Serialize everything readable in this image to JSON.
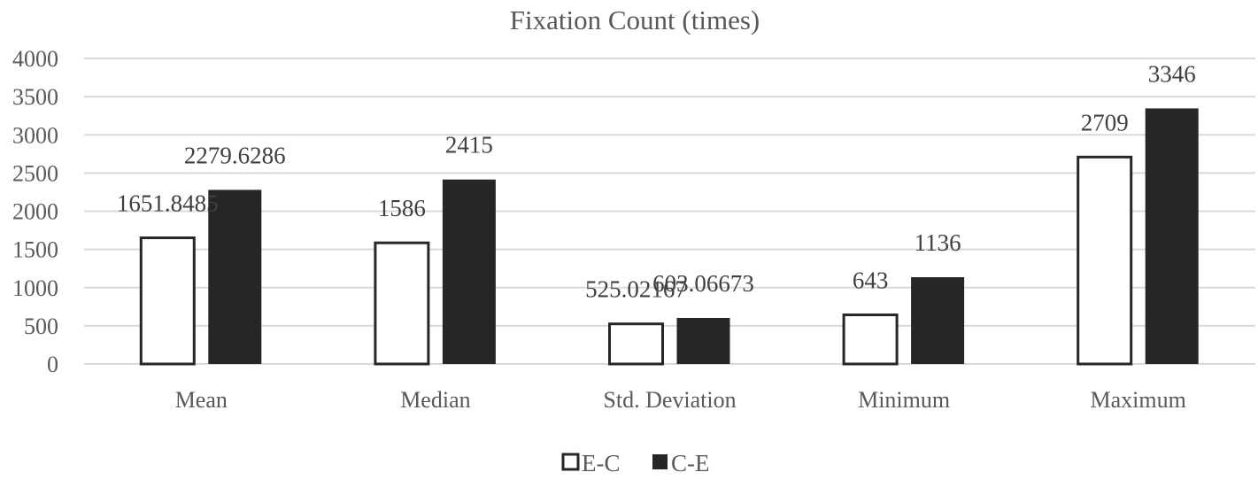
{
  "chart_data": {
    "type": "bar",
    "title": "Fixation Count (times)",
    "categories": [
      "Mean",
      "Median",
      "Std. Deviation",
      "Minimum",
      "Maximum"
    ],
    "series": [
      {
        "name": "E-C",
        "values": [
          1651.8485,
          1586,
          525.02167,
          643,
          2709
        ],
        "labels": [
          "1651.8485",
          "1586",
          "525.02167",
          "643",
          "2709"
        ],
        "color": "#ffffff"
      },
      {
        "name": "C-E",
        "values": [
          2279.6286,
          2415,
          603.06673,
          1136,
          3346
        ],
        "labels": [
          "2279.6286",
          "2415",
          "603.06673",
          "1136",
          "3346"
        ],
        "color": "#262626"
      }
    ],
    "ylim": [
      0,
      4000
    ],
    "yticks": [
      "0",
      "500",
      "1000",
      "1500",
      "2000",
      "2500",
      "3000",
      "3500",
      "4000"
    ],
    "xlabel": "",
    "ylabel": "",
    "grid": true,
    "legend_position": "bottom"
  }
}
